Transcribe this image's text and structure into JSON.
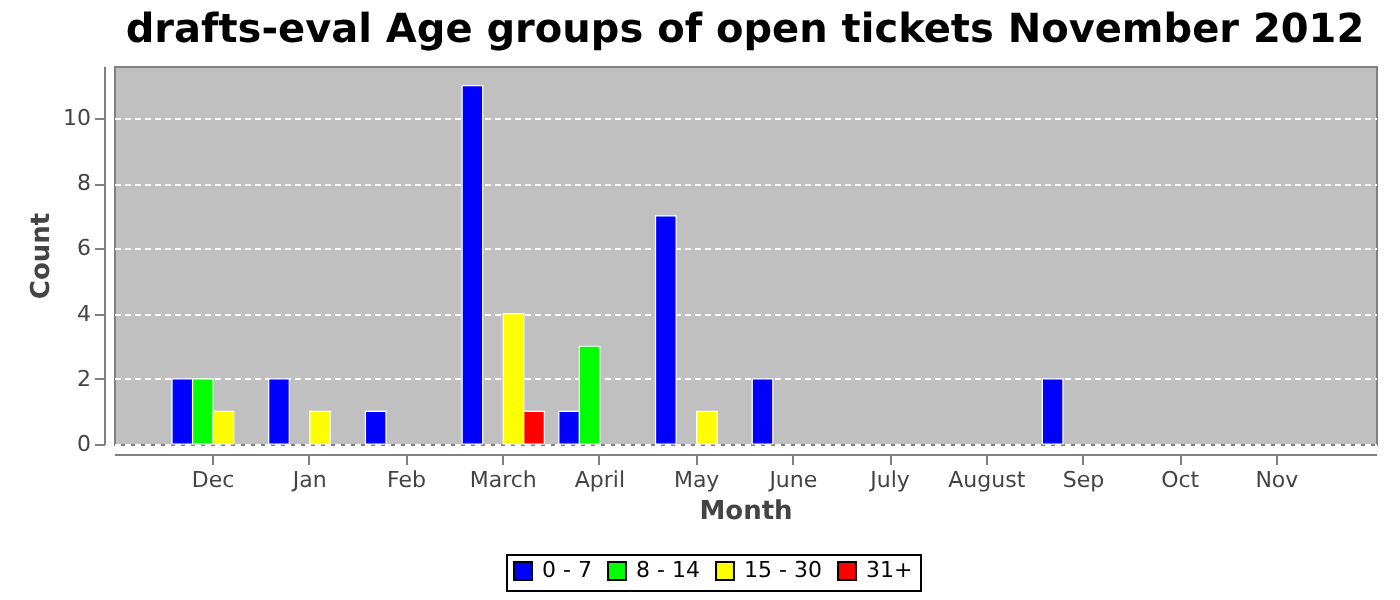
{
  "chart_data": {
    "type": "bar",
    "title": "drafts-eval Age groups of open tickets November 2012",
    "xlabel": "Month",
    "ylabel": "Count",
    "categories": [
      "Dec",
      "Jan",
      "Feb",
      "March",
      "April",
      "May",
      "June",
      "July",
      "August",
      "Sep",
      "Oct",
      "Nov"
    ],
    "series": [
      {
        "name": "0 - 7",
        "color": "#0000ff",
        "values": [
          2,
          2,
          1,
          11,
          1,
          7,
          2,
          null,
          null,
          2,
          null,
          null
        ]
      },
      {
        "name": "8 - 14",
        "color": "#00ff00",
        "values": [
          2,
          null,
          null,
          null,
          3,
          null,
          null,
          null,
          null,
          null,
          null,
          null
        ]
      },
      {
        "name": "15 - 30",
        "color": "#ffff00",
        "values": [
          1,
          1,
          null,
          4,
          null,
          1,
          null,
          null,
          null,
          null,
          null,
          null
        ]
      },
      {
        "name": "31+",
        "color": "#ff0000",
        "values": [
          null,
          null,
          null,
          1,
          null,
          null,
          null,
          null,
          null,
          null,
          null,
          null
        ]
      }
    ],
    "ylim": [
      0,
      11.6
    ],
    "yticks": [
      0,
      2,
      4,
      6,
      8,
      10
    ],
    "grid": "y",
    "legend": "bottom"
  }
}
